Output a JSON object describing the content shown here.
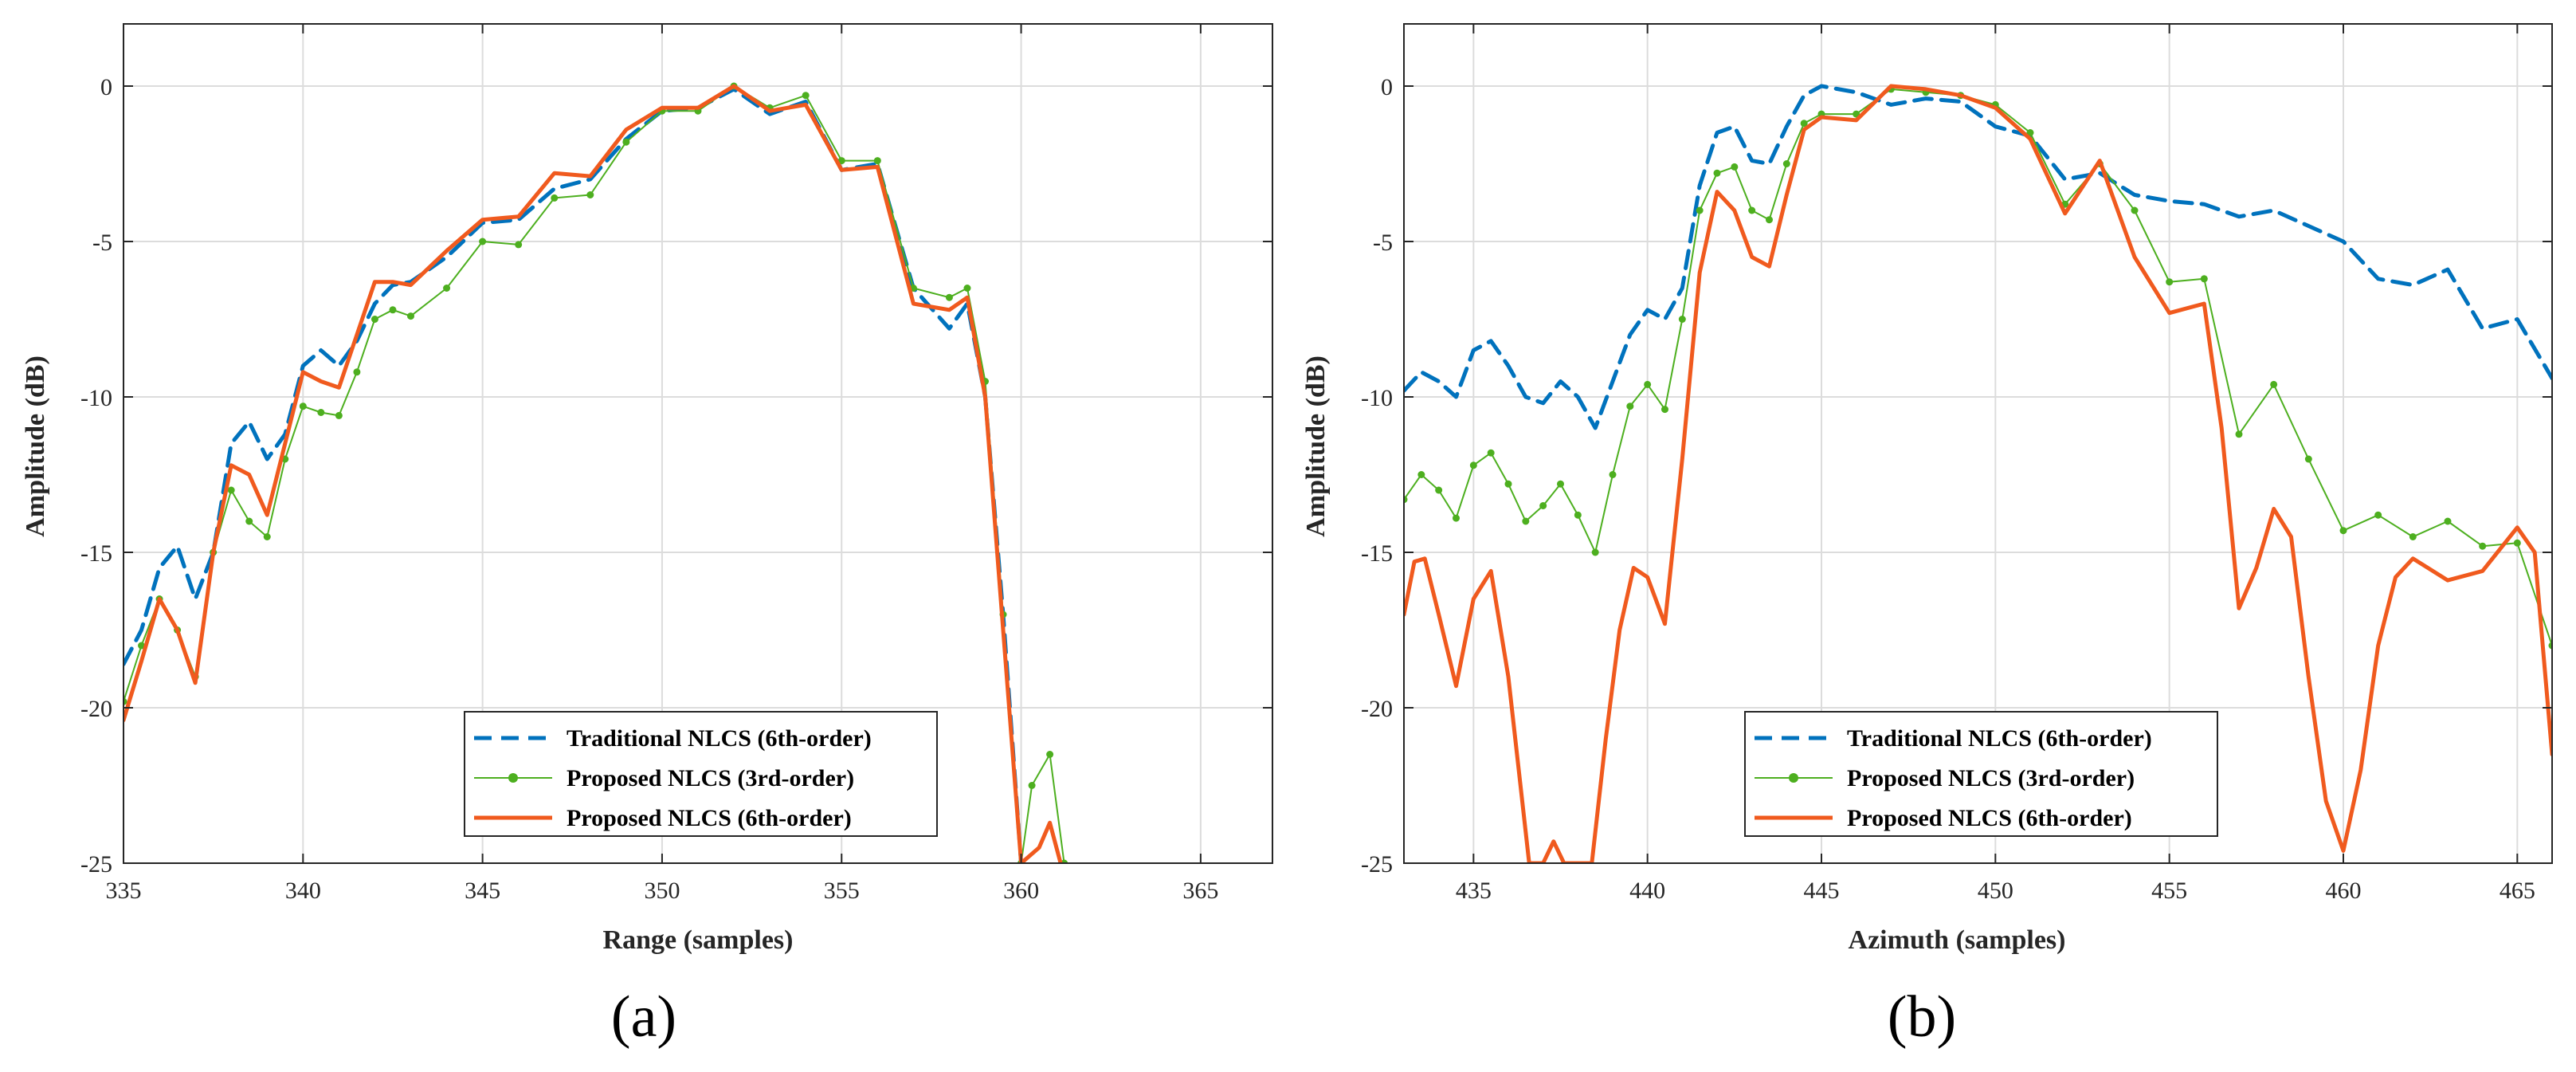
{
  "colors": {
    "traditional": "#0072BD",
    "proposed3": "#4DAF1F",
    "proposed6": "#F05A1E",
    "grid": "#DCDCDC",
    "axes": "#262626"
  },
  "chart_data": [
    {
      "type": "line",
      "panel": "(a)",
      "xlabel": "Range (samples)",
      "ylabel": "Amplitude (dB)",
      "xlim": [
        335,
        367
      ],
      "ylim": [
        -25,
        2
      ],
      "xticks": [
        335,
        340,
        345,
        350,
        355,
        360,
        365
      ],
      "yticks": [
        0,
        -5,
        -10,
        -15,
        -20,
        -25
      ],
      "grid": true,
      "legend_position": "bottom-right",
      "series": [
        {
          "name": "Traditional NLCS (6th-order)",
          "style": "dashed",
          "color": "#0072BD",
          "x": [
            335,
            335.5,
            336,
            336.5,
            337,
            337.5,
            338,
            338.5,
            339,
            339.5,
            340,
            340.5,
            341,
            341.5,
            342,
            342.5,
            343,
            344,
            345,
            346,
            347,
            348,
            349,
            350,
            351,
            352,
            353,
            354,
            355,
            356,
            357,
            358,
            358.5,
            359,
            359.5,
            360
          ],
          "y": [
            -18.6,
            -17.5,
            -15.5,
            -14.8,
            -16.5,
            -15,
            -11.5,
            -10.8,
            -12,
            -11.2,
            -9,
            -8.5,
            -9,
            -8.2,
            -7,
            -6.4,
            -6.3,
            -5.5,
            -4.4,
            -4.3,
            -3.3,
            -3,
            -1.7,
            -0.8,
            -0.7,
            -0.1,
            -0.9,
            -0.5,
            -2.7,
            -2.5,
            -6.5,
            -7.8,
            -7,
            -10,
            -17,
            -25
          ]
        },
        {
          "name": "Proposed NLCS (3rd-order)",
          "style": "dotted-markers",
          "color": "#4DAF1F",
          "x": [
            335,
            335.5,
            336,
            336.5,
            337,
            337.5,
            338,
            338.5,
            339,
            339.5,
            340,
            340.5,
            341,
            341.5,
            342,
            342.5,
            343,
            344,
            345,
            346,
            347,
            348,
            349,
            350,
            351,
            352,
            353,
            354,
            355,
            356,
            357,
            358,
            358.5,
            359,
            359.5,
            360,
            360.3,
            360.8,
            361.2
          ],
          "y": [
            -19.8,
            -18,
            -16.5,
            -17.5,
            -19,
            -15,
            -13,
            -14,
            -14.5,
            -12,
            -10.3,
            -10.5,
            -10.6,
            -9.2,
            -7.5,
            -7.2,
            -7.4,
            -6.5,
            -5,
            -5.1,
            -3.6,
            -3.5,
            -1.8,
            -0.8,
            -0.8,
            0,
            -0.7,
            -0.3,
            -2.4,
            -2.4,
            -6.5,
            -6.8,
            -6.5,
            -9.5,
            -17,
            -25,
            -22.5,
            -21.5,
            -25
          ]
        },
        {
          "name": "Proposed NLCS (6th-order)",
          "style": "solid",
          "color": "#F05A1E",
          "x": [
            335,
            335.5,
            336,
            336.5,
            337,
            337.5,
            338,
            338.5,
            339,
            339.5,
            340,
            340.5,
            341,
            341.5,
            342,
            342.5,
            343,
            344,
            345,
            346,
            347,
            348,
            349,
            350,
            351,
            352,
            353,
            354,
            355,
            356,
            357,
            358,
            358.5,
            359,
            359.5,
            360,
            360.5,
            360.8,
            361.1
          ],
          "y": [
            -20.4,
            -18.5,
            -16.5,
            -17.5,
            -19.2,
            -15,
            -12.2,
            -12.5,
            -13.8,
            -11.5,
            -9.2,
            -9.5,
            -9.7,
            -8,
            -6.3,
            -6.3,
            -6.4,
            -5.3,
            -4.3,
            -4.2,
            -2.8,
            -2.9,
            -1.4,
            -0.7,
            -0.7,
            0,
            -0.8,
            -0.6,
            -2.7,
            -2.6,
            -7,
            -7.2,
            -6.8,
            -10,
            -17.5,
            -25,
            -24.5,
            -23.7,
            -25
          ]
        }
      ]
    },
    {
      "type": "line",
      "panel": "(b)",
      "xlabel": "Azimuth (samples)",
      "ylabel": "Amplitude (dB)",
      "xlim": [
        433,
        466
      ],
      "ylim": [
        -25,
        2
      ],
      "xticks": [
        435,
        440,
        445,
        450,
        455,
        460,
        465
      ],
      "yticks": [
        0,
        -5,
        -10,
        -15,
        -20,
        -25
      ],
      "grid": true,
      "legend_position": "bottom-center",
      "series": [
        {
          "name": "Traditional NLCS (6th-order)",
          "style": "dashed",
          "color": "#0072BD",
          "x": [
            433,
            433.5,
            434,
            434.5,
            435,
            435.5,
            436,
            436.5,
            437,
            437.5,
            438,
            438.5,
            439,
            439.5,
            440,
            440.5,
            441,
            441.5,
            442,
            442.5,
            443,
            443.5,
            444,
            444.5,
            445,
            446,
            447,
            448,
            449,
            450,
            451,
            452,
            453,
            454,
            455,
            456,
            457,
            458,
            459,
            460,
            461,
            462,
            463,
            464,
            465,
            466
          ],
          "y": [
            -9.8,
            -9.2,
            -9.5,
            -10,
            -8.5,
            -8.2,
            -9,
            -10,
            -10.2,
            -9.5,
            -10,
            -11,
            -9.5,
            -8,
            -7.2,
            -7.5,
            -6.5,
            -3.2,
            -1.5,
            -1.3,
            -2.4,
            -2.5,
            -1.3,
            -0.3,
            0,
            -0.2,
            -0.6,
            -0.4,
            -0.5,
            -1.3,
            -1.6,
            -3,
            -2.8,
            -3.5,
            -3.7,
            -3.8,
            -4.2,
            -4,
            -4.5,
            -5,
            -6.2,
            -6.4,
            -5.9,
            -7.8,
            -7.5,
            -9.4
          ]
        },
        {
          "name": "Proposed NLCS (3rd-order)",
          "style": "dotted-markers",
          "color": "#4DAF1F",
          "x": [
            433,
            433.5,
            434,
            434.5,
            435,
            435.5,
            436,
            436.5,
            437,
            437.5,
            438,
            438.5,
            439,
            439.5,
            440,
            440.5,
            441,
            441.5,
            442,
            442.5,
            443,
            443.5,
            444,
            444.5,
            445,
            446,
            447,
            448,
            449,
            450,
            451,
            452,
            453,
            454,
            455,
            456,
            457,
            458,
            459,
            460,
            461,
            462,
            463,
            464,
            465,
            466
          ],
          "y": [
            -13.3,
            -12.5,
            -13,
            -13.9,
            -12.2,
            -11.8,
            -12.8,
            -14,
            -13.5,
            -12.8,
            -13.8,
            -15,
            -12.5,
            -10.3,
            -9.6,
            -10.4,
            -7.5,
            -4,
            -2.8,
            -2.6,
            -4,
            -4.3,
            -2.5,
            -1.2,
            -0.9,
            -0.9,
            -0.1,
            -0.2,
            -0.3,
            -0.6,
            -1.5,
            -3.8,
            -2.5,
            -4,
            -6.3,
            -6.2,
            -11.2,
            -9.6,
            -12,
            -14.3,
            -13.8,
            -14.5,
            -14,
            -14.8,
            -14.7,
            -18
          ]
        },
        {
          "name": "Proposed NLCS (6th-order)",
          "style": "solid",
          "color": "#F05A1E",
          "x": [
            433,
            433.3,
            433.6,
            434,
            434.5,
            435,
            435.5,
            436,
            436.3,
            436.6,
            437,
            437.3,
            437.6,
            438,
            438.4,
            438.8,
            439.2,
            439.6,
            440,
            440.5,
            441,
            441.5,
            442,
            442.5,
            443,
            443.5,
            444,
            444.5,
            445,
            446,
            447,
            448,
            449,
            450,
            451,
            452,
            453,
            454,
            455,
            456,
            456.5,
            457,
            457.5,
            458,
            458.5,
            459,
            459.5,
            460,
            460.5,
            461,
            461.5,
            462,
            463,
            464,
            465,
            465.5,
            466
          ],
          "y": [
            -17,
            -15.3,
            -15.2,
            -17,
            -19.3,
            -16.5,
            -15.6,
            -19,
            -22,
            -25,
            -25,
            -24.3,
            -25,
            -25,
            -25,
            -21,
            -17.5,
            -15.5,
            -15.8,
            -17.3,
            -12,
            -6,
            -3.4,
            -4,
            -5.5,
            -5.8,
            -3.5,
            -1.4,
            -1.0,
            -1.1,
            0,
            -0.1,
            -0.3,
            -0.7,
            -1.7,
            -4.1,
            -2.4,
            -5.5,
            -7.3,
            -7,
            -11,
            -16.8,
            -15.5,
            -13.6,
            -14.5,
            -19,
            -23,
            -24.6,
            -22,
            -18,
            -15.8,
            -15.2,
            -15.9,
            -15.6,
            -14.2,
            -15,
            -21.5
          ]
        }
      ]
    }
  ]
}
